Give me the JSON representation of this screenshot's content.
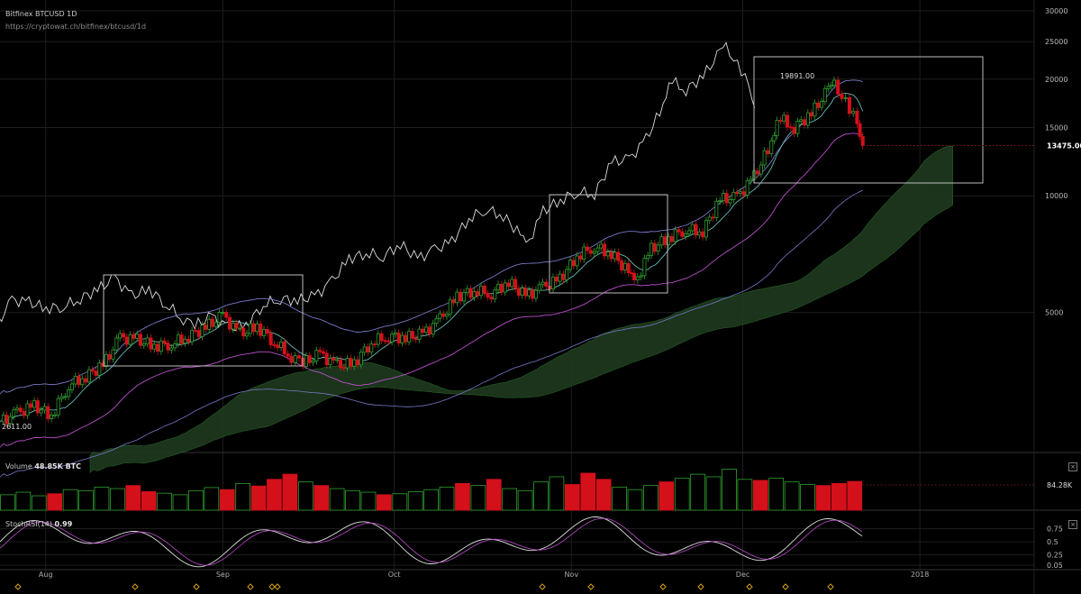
{
  "header": {
    "title": "Bitfinex BTCUSD 1D",
    "source": "https://cryptowat.ch/bitfinex/btcusd/1d"
  },
  "volume_panel": {
    "label": "Volume",
    "value": "48.85K BTC",
    "scale_label": "84.28K"
  },
  "stochrsi_panel": {
    "label": "StochRSI(14)",
    "value": "0.99",
    "close_icon": "close-icon"
  },
  "colors": {
    "up": "#2fa02f",
    "down": "#d4101a",
    "white_line": "#dcdcdc",
    "purple": "#b94fc9",
    "blue": "#7878c8",
    "cloud": "#1e3a1e",
    "marker": "#d4a017"
  },
  "chart_data": {
    "type": "candlestick",
    "title": "Bitfinex BTCUSD 1D",
    "y_scale": "log",
    "y_ticks": [
      5000,
      10000,
      15000,
      20000,
      25000,
      30000
    ],
    "y_tick_labels": [
      "5000",
      "10000",
      "15000",
      "20000",
      "25000",
      "30000"
    ],
    "x_ticks": [
      "Aug",
      "Sep",
      "Oct",
      "Nov",
      "Dec",
      "2018"
    ],
    "last_price_label": "13475.00",
    "high_annotation": "19891.00",
    "low_annotation": "2611.00",
    "series": [
      {
        "name": "BTCUSD",
        "x": [
          "2017-07-24",
          "2017-07-27",
          "2017-07-30",
          "2017-08-02",
          "2017-08-05",
          "2017-08-08",
          "2017-08-11",
          "2017-08-14",
          "2017-08-17",
          "2017-08-20",
          "2017-08-23",
          "2017-08-26",
          "2017-08-29",
          "2017-09-01",
          "2017-09-04",
          "2017-09-07",
          "2017-09-10",
          "2017-09-13",
          "2017-09-15",
          "2017-09-18",
          "2017-09-21",
          "2017-09-24",
          "2017-09-27",
          "2017-09-30",
          "2017-10-03",
          "2017-10-06",
          "2017-10-09",
          "2017-10-12",
          "2017-10-15",
          "2017-10-18",
          "2017-10-21",
          "2017-10-24",
          "2017-10-27",
          "2017-10-30",
          "2017-11-02",
          "2017-11-05",
          "2017-11-08",
          "2017-11-11",
          "2017-11-12",
          "2017-11-15",
          "2017-11-18",
          "2017-11-21",
          "2017-11-24",
          "2017-11-27",
          "2017-11-30",
          "2017-12-03",
          "2017-12-06",
          "2017-12-07",
          "2017-12-10",
          "2017-12-13",
          "2017-12-16",
          "2017-12-17",
          "2017-12-19",
          "2017-12-21",
          "2017-12-22"
        ],
        "close": [
          2611,
          2750,
          2870,
          2710,
          3250,
          3420,
          3650,
          4300,
          4250,
          4100,
          4150,
          4350,
          4580,
          4900,
          4400,
          4600,
          4200,
          3850,
          3700,
          3900,
          3650,
          3700,
          4200,
          4350,
          4300,
          4400,
          4800,
          5500,
          5700,
          5600,
          6000,
          5500,
          5800,
          6100,
          7000,
          7400,
          7100,
          6350,
          5900,
          7300,
          7800,
          8200,
          8100,
          9800,
          9900,
          11200,
          13700,
          16000,
          15000,
          16300,
          18800,
          19200,
          17600,
          15600,
          13475
        ]
      }
    ],
    "volume_values": [
      30,
      35,
      28,
      32,
      40,
      38,
      45,
      42,
      48,
      36,
      33,
      30,
      38,
      44,
      40,
      52,
      47,
      60,
      70,
      55,
      48,
      42,
      38,
      35,
      30,
      32,
      36,
      40,
      45,
      52,
      48,
      60,
      42,
      38,
      55,
      65,
      50,
      72,
      60,
      45,
      40,
      48,
      55,
      62,
      70,
      65,
      80,
      60,
      58,
      62,
      55,
      50,
      48,
      52,
      56
    ]
  }
}
